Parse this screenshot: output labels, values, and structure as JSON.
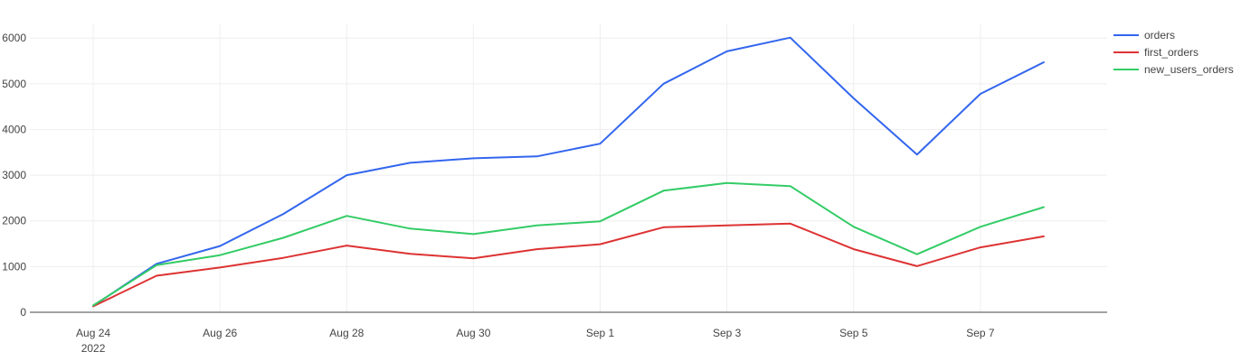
{
  "chart_data": {
    "type": "line",
    "title": "",
    "xlabel": "",
    "ylabel": "",
    "x": [
      "2022-08-24",
      "2022-08-25",
      "2022-08-26",
      "2022-08-27",
      "2022-08-28",
      "2022-08-29",
      "2022-08-30",
      "2022-08-31",
      "2022-09-01",
      "2022-09-02",
      "2022-09-03",
      "2022-09-04",
      "2022-09-05",
      "2022-09-06",
      "2022-09-07",
      "2022-09-08"
    ],
    "x_ticks": [
      {
        "date": "2022-08-24",
        "label": "Aug 24",
        "sublabel": "2022"
      },
      {
        "date": "2022-08-26",
        "label": "Aug 26"
      },
      {
        "date": "2022-08-28",
        "label": "Aug 28"
      },
      {
        "date": "2022-08-30",
        "label": "Aug 30"
      },
      {
        "date": "2022-09-01",
        "label": "Sep 1"
      },
      {
        "date": "2022-09-03",
        "label": "Sep 3"
      },
      {
        "date": "2022-09-05",
        "label": "Sep 5"
      },
      {
        "date": "2022-09-07",
        "label": "Sep 7"
      }
    ],
    "xlim": [
      "2022-08-23",
      "2022-09-09"
    ],
    "y_ticks": [
      0,
      1000,
      2000,
      3000,
      4000,
      5000,
      6000
    ],
    "ylim": [
      0,
      6300
    ],
    "grid": true,
    "legend": "top-right",
    "series": [
      {
        "name": "orders",
        "color": "#3366ee",
        "values": [
          140,
          1060,
          1450,
          2150,
          3000,
          3270,
          3370,
          3410,
          3690,
          5000,
          5710,
          6010,
          4680,
          3450,
          4780,
          5470
        ]
      },
      {
        "name": "first_orders",
        "color": "#dd3333",
        "values": [
          130,
          800,
          980,
          1190,
          1460,
          1280,
          1180,
          1380,
          1490,
          1860,
          1900,
          1940,
          1380,
          1010,
          1420,
          1660
        ]
      },
      {
        "name": "new_users_orders",
        "color": "#33cc66",
        "values": [
          150,
          1030,
          1250,
          1630,
          2110,
          1830,
          1710,
          1900,
          1990,
          2660,
          2830,
          2760,
          1870,
          1270,
          1870,
          2300
        ]
      }
    ]
  }
}
